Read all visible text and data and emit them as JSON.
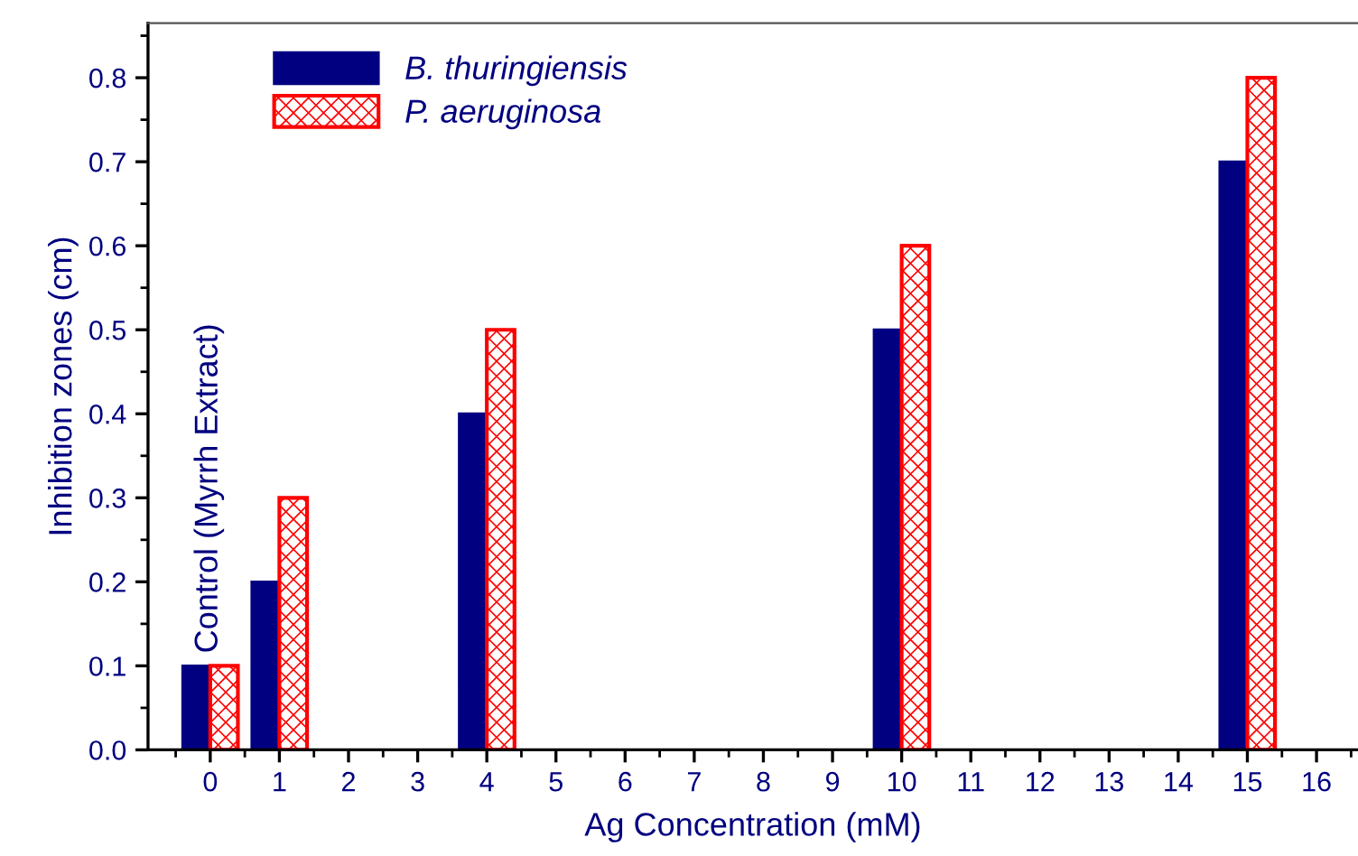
{
  "chart_data": {
    "type": "bar",
    "xlabel": "Ag Concentration (mM)",
    "ylabel": "Inhibition zones (cm)",
    "x": [
      0,
      1,
      4,
      10,
      15
    ],
    "series": [
      {
        "name": "B. thuringiensis",
        "color": "#000080",
        "values": [
          0.1,
          0.2,
          0.4,
          0.5,
          0.7
        ]
      },
      {
        "name": "P. aeruginosa",
        "color": "#ff0000",
        "values": [
          0.1,
          0.3,
          0.5,
          0.6,
          0.8
        ]
      }
    ],
    "xlim": [
      -0.9,
      16.6
    ],
    "xticks": [
      0,
      1,
      2,
      3,
      4,
      5,
      6,
      7,
      8,
      9,
      10,
      11,
      12,
      13,
      14,
      15,
      16
    ],
    "ylim": [
      0,
      0.865
    ],
    "yticks": [
      {
        "value": 0,
        "label": "0.0"
      },
      0.1,
      0.2,
      0.3,
      0.4,
      0.5,
      0.6,
      0.7,
      0.8
    ],
    "annotations": [
      {
        "text": "Control (Myrrh Extract)",
        "x": 0,
        "y": 0.1
      }
    ],
    "legend": "top left",
    "grid": false
  }
}
